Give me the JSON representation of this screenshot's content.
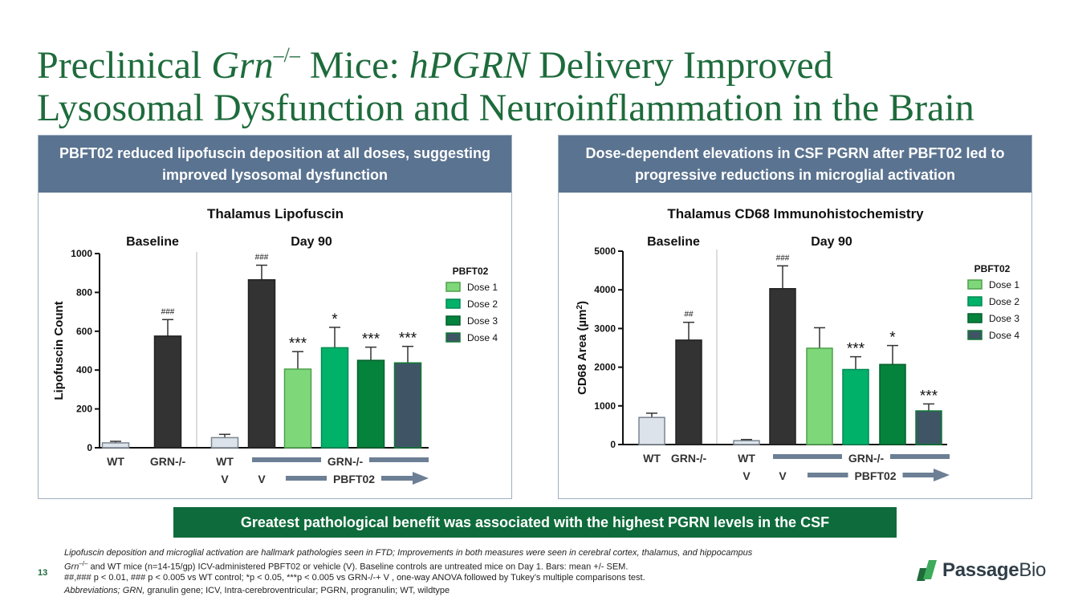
{
  "title": {
    "line1_a": "Preclinical ",
    "line1_italic": "Grn",
    "line1_sup": "–/–",
    "line1_b": " Mice: ",
    "line1_italic2": "hPGRN",
    "line1_c": " Delivery Improved",
    "line2": "Lysosomal Dysfunction and Neuroinflammation in the Brain"
  },
  "left_panel": {
    "header": "PBFT02 reduced lipofuscin deposition at all doses, suggesting improved lysosomal dysfunction"
  },
  "right_panel": {
    "header": "Dose-dependent elevations in CSF PGRN after PBFT02 led to progressive reductions in microglial activation"
  },
  "colors": {
    "wt": "#dde3ea",
    "grn": "#333333",
    "dose1": "#7ed87a",
    "dose2": "#00b16a",
    "dose3": "#05823c",
    "dose4": "#3f5566",
    "axis_bar": "#6c7f95"
  },
  "chart_data": [
    {
      "type": "bar",
      "title": "Thalamus Lipofuscin",
      "ylabel": "Lipofuscin Count",
      "ylim": [
        0,
        1000
      ],
      "yticks": [
        "0",
        "200",
        "400",
        "600",
        "800",
        "1000"
      ],
      "section_labels": [
        "Baseline",
        "Day 90"
      ],
      "categories": [
        "WT",
        "GRN-/-",
        "WT V",
        "GRN-/- V",
        "Dose 1",
        "Dose 2",
        "Dose 3",
        "Dose 4"
      ],
      "values": [
        25,
        575,
        52,
        865,
        405,
        515,
        450,
        437
      ],
      "errors": [
        8,
        85,
        17,
        75,
        90,
        105,
        68,
        85
      ],
      "annotations": [
        "",
        "###",
        "",
        "###",
        "***",
        "*",
        "***",
        "***"
      ],
      "legend_title": "PBFT02",
      "legend": [
        "Dose 1",
        "Dose 2",
        "Dose 3",
        "Dose 4"
      ],
      "xlabels_row1": [
        "WT",
        "GRN-/-",
        "WT",
        "GRN-/-"
      ],
      "xlabels_row2": [
        "V",
        "V",
        "PBFT02"
      ]
    },
    {
      "type": "bar",
      "title": "Thalamus CD68 Immunohistochemistry",
      "ylabel": "CD68 Area (µm",
      "ylabel_sup": "2",
      "ylabel_end": ")",
      "ylim": [
        0,
        5000
      ],
      "yticks": [
        "0",
        "1000",
        "2000",
        "3000",
        "4000",
        "5000"
      ],
      "section_labels": [
        "Baseline",
        "Day 90"
      ],
      "categories": [
        "WT",
        "GRN-/-",
        "WT V",
        "GRN-/- V",
        "Dose 1",
        "Dose 2",
        "Dose 3",
        "Dose 4"
      ],
      "values": [
        700,
        2700,
        100,
        4030,
        2490,
        1940,
        2070,
        870
      ],
      "errors": [
        110,
        460,
        30,
        590,
        530,
        330,
        490,
        180
      ],
      "annotations": [
        "",
        "##",
        "",
        "###",
        "",
        "***",
        "*",
        "***"
      ],
      "legend_title": "PBFT02",
      "legend": [
        "Dose 1",
        "Dose 2",
        "Dose 3",
        "Dose 4"
      ],
      "xlabels_row1": [
        "WT",
        "GRN-/-",
        "WT",
        "GRN-/-"
      ],
      "xlabels_row2": [
        "V",
        "V",
        "PBFT02"
      ]
    }
  ],
  "banner": "Greatest pathological benefit was associated with the highest PGRN levels in the CSF",
  "footnotes": {
    "line1": "Lipofuscin deposition and microglial activation are hallmark pathologies seen in FTD; Improvements in both measures were seen in cerebral cortex, thalamus, and hippocampus",
    "line2_italic": "Grn",
    "line2_sup": "–/–",
    "line2_rest": " and WT mice (n=14-15/gp) ICV-administered PBFT02 or vehicle (V). Baseline controls are untreated mice on Day 1.  Bars: mean +/- SEM.",
    "line3": "##,### p < 0.01, ### p < 0.005 vs WT control;  *p < 0.05, ***p < 0.005 vs GRN-/-+ V , one-way ANOVA followed by Tukey’s multiple comparisons test.",
    "line4_italic": "Abbreviations; GRN,",
    "line4_rest": " granulin gene; ICV, Intra-cerebroventricular; PGRN, progranulin; WT, wildtype"
  },
  "page_number": "13",
  "logo": {
    "word1": "Passage",
    "word2": "Bio"
  }
}
